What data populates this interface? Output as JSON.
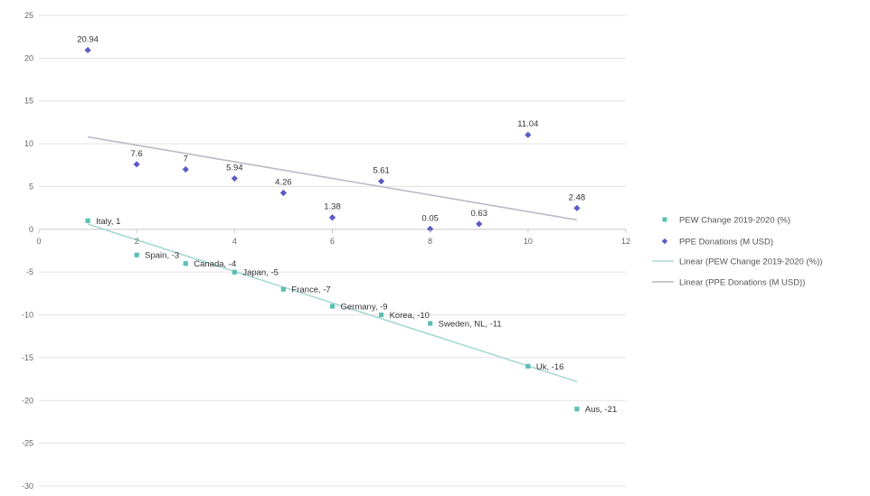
{
  "chart_data": {
    "type": "scatter",
    "xlim": [
      0,
      12
    ],
    "ylim": [
      -30,
      25
    ],
    "x_ticks": [
      0,
      2,
      4,
      6,
      8,
      10,
      12
    ],
    "y_ticks": [
      -30,
      -25,
      -20,
      -15,
      -10,
      -5,
      0,
      5,
      10,
      15,
      20,
      25
    ],
    "grid": "horizontal",
    "legend_position": "right",
    "series": [
      {
        "name": "PEW Change 2019-2020 (%)",
        "color": "#5bbfb5",
        "marker": "square",
        "points": [
          {
            "x": 1,
            "y": 1,
            "label": "Italy, 1"
          },
          {
            "x": 2,
            "y": -3,
            "label": "Spain, -3"
          },
          {
            "x": 3,
            "y": -4,
            "label": "Canada, -4"
          },
          {
            "x": 4,
            "y": -5,
            "label": "Japan, -5"
          },
          {
            "x": 5,
            "y": -7,
            "label": "France, -7"
          },
          {
            "x": 6,
            "y": -9,
            "label": "Germany, -9"
          },
          {
            "x": 7,
            "y": -10,
            "label": "Korea, -10"
          },
          {
            "x": 8,
            "y": -11,
            "label": "Sweden, NL, -11"
          },
          {
            "x": 10,
            "y": -16,
            "label": "Uk, -16"
          },
          {
            "x": 11,
            "y": -21,
            "label": "Aus, -21"
          }
        ]
      },
      {
        "name": "PPE Donations (M USD)",
        "color": "#5b5bc4",
        "marker": "diamond",
        "points": [
          {
            "x": 1,
            "y": 20.94,
            "label": "20.94"
          },
          {
            "x": 2,
            "y": 7.6,
            "label": "7.6"
          },
          {
            "x": 3,
            "y": 7,
            "label": "7"
          },
          {
            "x": 4,
            "y": 5.94,
            "label": "5.94"
          },
          {
            "x": 5,
            "y": 4.26,
            "label": "4.26"
          },
          {
            "x": 6,
            "y": 1.38,
            "label": "1.38"
          },
          {
            "x": 7,
            "y": 5.61,
            "label": "5.61"
          },
          {
            "x": 8,
            "y": 0.05,
            "label": "0.05"
          },
          {
            "x": 9,
            "y": 0.63,
            "label": "0.63"
          },
          {
            "x": 10,
            "y": 11.04,
            "label": "11.04"
          },
          {
            "x": 11,
            "y": 2.48,
            "label": "2.48"
          }
        ]
      }
    ],
    "trendlines": [
      {
        "name": "Linear (PEW Change 2019-2020 (%))",
        "color": "#a8d8d2",
        "x": [
          1,
          11
        ],
        "y": [
          0.6,
          -17.8
        ]
      },
      {
        "name": "Linear (PPE Donations (M USD))",
        "color": "#b9b9c9",
        "x": [
          1,
          11
        ],
        "y": [
          10.8,
          1.1
        ]
      }
    ]
  }
}
